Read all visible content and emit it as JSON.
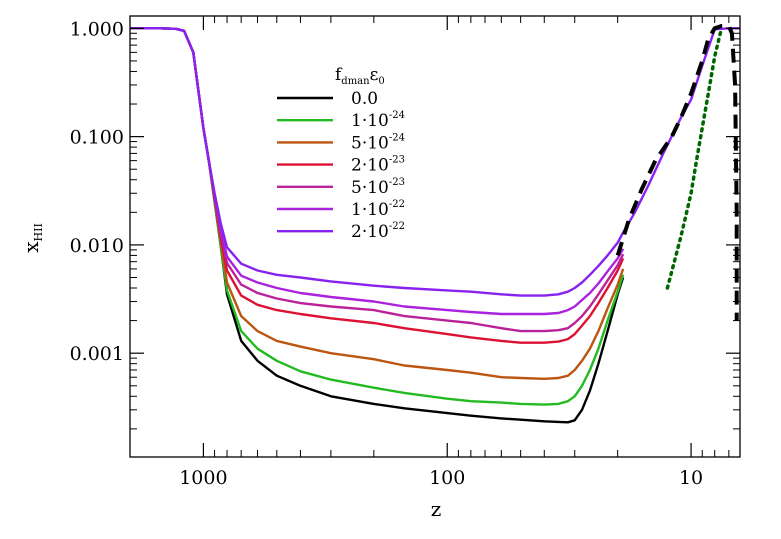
{
  "chart_data": {
    "type": "line",
    "title": "",
    "xlabel": "z",
    "ylabel": "x",
    "ylabel_sub": "HII",
    "x_scale": "log",
    "x_reversed": true,
    "y_scale": "log",
    "xlim": [
      2000,
      6.3
    ],
    "ylim": [
      0.00011,
      1.3
    ],
    "x_ticks": [
      {
        "value": 1000,
        "label": "1000"
      },
      {
        "value": 100,
        "label": "100"
      },
      {
        "value": 10,
        "label": "10"
      }
    ],
    "y_ticks": [
      {
        "value": 1,
        "label": "1.000"
      },
      {
        "value": 0.1,
        "label": "0.100"
      },
      {
        "value": 0.01,
        "label": "0.010"
      },
      {
        "value": 0.001,
        "label": "0.001"
      }
    ],
    "legend": {
      "title": "f",
      "title_sub": "dman",
      "title_tail": "ε",
      "title_tail_sub": "0",
      "placement": "top-center"
    },
    "series": [
      {
        "name": "0.0",
        "label_base": "0.0",
        "label_exp": "",
        "color": "#000000",
        "x": [
          2000,
          1500,
          1300,
          1200,
          1100,
          1000,
          950,
          900,
          850,
          800,
          700,
          600,
          500,
          400,
          300,
          200,
          150,
          100,
          80,
          60,
          50,
          40,
          35,
          32,
          30,
          28,
          26,
          24,
          22,
          20,
          19
        ],
        "y": [
          1,
          1,
          0.99,
          0.95,
          0.6,
          0.12,
          0.06,
          0.025,
          0.01,
          0.0035,
          0.0013,
          0.00085,
          0.00062,
          0.0005,
          0.0004,
          0.00034,
          0.00031,
          0.00028,
          0.000265,
          0.00025,
          0.000243,
          0.000235,
          0.000232,
          0.00023,
          0.00024,
          0.0003,
          0.00045,
          0.0008,
          0.0016,
          0.0035,
          0.005
        ]
      },
      {
        "name": "1·10⁻²⁴",
        "label_base": "1·10",
        "label_exp": "-24",
        "color": "#22bb22",
        "x": [
          2000,
          1500,
          1300,
          1200,
          1100,
          1000,
          950,
          900,
          850,
          800,
          700,
          600,
          500,
          400,
          300,
          200,
          150,
          100,
          80,
          60,
          50,
          40,
          35,
          32,
          30,
          28,
          26,
          24,
          22,
          20,
          19
        ],
        "y": [
          1,
          1,
          0.99,
          0.95,
          0.6,
          0.12,
          0.06,
          0.025,
          0.01,
          0.0038,
          0.0016,
          0.0011,
          0.00085,
          0.00068,
          0.00057,
          0.00048,
          0.00043,
          0.00038,
          0.00036,
          0.00035,
          0.00034,
          0.000335,
          0.00034,
          0.00036,
          0.0004,
          0.0005,
          0.0007,
          0.0011,
          0.002,
          0.0037,
          0.0053
        ]
      },
      {
        "name": "5·10⁻²⁴",
        "label_base": "5·10",
        "label_exp": "-24",
        "color": "#bb5511",
        "x": [
          2000,
          1500,
          1300,
          1200,
          1100,
          1000,
          950,
          900,
          850,
          800,
          700,
          600,
          500,
          400,
          300,
          200,
          150,
          100,
          80,
          60,
          50,
          40,
          35,
          32,
          30,
          28,
          26,
          24,
          22,
          20,
          19
        ],
        "y": [
          1,
          1,
          0.99,
          0.95,
          0.6,
          0.12,
          0.06,
          0.026,
          0.011,
          0.0045,
          0.0022,
          0.0016,
          0.0013,
          0.00115,
          0.001,
          0.00088,
          0.00077,
          0.0007,
          0.00066,
          0.0006,
          0.00059,
          0.00058,
          0.00059,
          0.00062,
          0.0007,
          0.00085,
          0.0011,
          0.0016,
          0.0026,
          0.0043,
          0.006
        ]
      },
      {
        "name": "2·10⁻²³",
        "label_base": "2·10",
        "label_exp": "-23",
        "color": "#dd1133",
        "x": [
          2000,
          1500,
          1300,
          1200,
          1100,
          1000,
          950,
          900,
          850,
          800,
          700,
          600,
          500,
          400,
          300,
          200,
          150,
          100,
          80,
          60,
          50,
          40,
          35,
          32,
          30,
          28,
          26,
          24,
          22,
          20,
          19
        ],
        "y": [
          1,
          1,
          0.99,
          0.95,
          0.6,
          0.12,
          0.06,
          0.027,
          0.012,
          0.0058,
          0.0034,
          0.0028,
          0.0025,
          0.0023,
          0.0021,
          0.0019,
          0.0017,
          0.0015,
          0.0014,
          0.0013,
          0.00125,
          0.00125,
          0.00128,
          0.00135,
          0.0015,
          0.0018,
          0.0022,
          0.0029,
          0.004,
          0.0058,
          0.0075
        ]
      },
      {
        "name": "5·10⁻²³",
        "label_base": "5·10",
        "label_exp": "-23",
        "color": "#bb2299",
        "x": [
          2000,
          1500,
          1300,
          1200,
          1100,
          1000,
          950,
          900,
          850,
          800,
          700,
          600,
          500,
          400,
          300,
          200,
          150,
          100,
          80,
          60,
          50,
          40,
          35,
          32,
          30,
          28,
          26,
          24,
          22,
          20,
          19
        ],
        "y": [
          1,
          1,
          0.99,
          0.95,
          0.6,
          0.12,
          0.06,
          0.028,
          0.013,
          0.0068,
          0.0043,
          0.0036,
          0.0032,
          0.0029,
          0.0027,
          0.0025,
          0.0022,
          0.002,
          0.0019,
          0.0017,
          0.0016,
          0.0016,
          0.00163,
          0.0017,
          0.0019,
          0.0022,
          0.0027,
          0.0035,
          0.0047,
          0.0065,
          0.0082
        ]
      },
      {
        "name": "1·10⁻²²",
        "label_base": "1·10",
        "label_exp": "-22",
        "color": "#aa22dd",
        "x": [
          2000,
          1500,
          1300,
          1200,
          1100,
          1000,
          950,
          900,
          850,
          800,
          700,
          600,
          500,
          400,
          300,
          200,
          150,
          100,
          80,
          60,
          50,
          40,
          35,
          32,
          30,
          28,
          26,
          24,
          22,
          20,
          19
        ],
        "y": [
          1,
          1,
          0.99,
          0.95,
          0.6,
          0.12,
          0.06,
          0.029,
          0.014,
          0.0078,
          0.0052,
          0.0045,
          0.004,
          0.0036,
          0.0033,
          0.003,
          0.0027,
          0.0025,
          0.0024,
          0.0023,
          0.0023,
          0.0023,
          0.00235,
          0.0025,
          0.0027,
          0.0031,
          0.0036,
          0.0044,
          0.0057,
          0.0075,
          0.0092
        ]
      },
      {
        "name": "2·10⁻²²",
        "label_base": "2·10",
        "label_exp": "-22",
        "color": "#8822ee",
        "x": [
          2000,
          1500,
          1300,
          1200,
          1100,
          1000,
          950,
          900,
          850,
          800,
          700,
          600,
          500,
          400,
          300,
          200,
          150,
          100,
          80,
          60,
          50,
          40,
          35,
          32,
          30,
          28,
          26,
          24,
          22,
          20,
          19,
          17,
          15,
          13,
          11,
          10,
          9,
          8,
          7,
          6.5,
          6.3
        ],
        "y": [
          1,
          1,
          0.99,
          0.95,
          0.6,
          0.12,
          0.06,
          0.03,
          0.016,
          0.0095,
          0.0067,
          0.0058,
          0.0053,
          0.005,
          0.0046,
          0.0042,
          0.004,
          0.0038,
          0.0037,
          0.0035,
          0.0034,
          0.0034,
          0.0035,
          0.0037,
          0.004,
          0.0045,
          0.0053,
          0.0064,
          0.008,
          0.0105,
          0.013,
          0.02,
          0.035,
          0.07,
          0.15,
          0.22,
          0.45,
          0.98,
          1.0,
          1.0,
          1.0
        ]
      }
    ],
    "extra_curves": [
      {
        "style": "dashed",
        "color": "#000000",
        "x": [
          20,
          18,
          16,
          14,
          12,
          11,
          10,
          9,
          8.5,
          8,
          7.5,
          7,
          6.8,
          6.6,
          6.5,
          6.5
        ],
        "y": [
          0.008,
          0.017,
          0.032,
          0.06,
          0.1,
          0.15,
          0.25,
          0.5,
          0.8,
          1.0,
          1.05,
          1.05,
          0.9,
          0.3,
          0.02,
          0.002
        ]
      },
      {
        "style": "dotted",
        "color": "#006600",
        "x": [
          12.5,
          11,
          10,
          9.5,
          9,
          8.5,
          8,
          7.5
        ],
        "y": [
          0.004,
          0.012,
          0.03,
          0.06,
          0.12,
          0.25,
          0.55,
          1.0
        ]
      }
    ]
  }
}
